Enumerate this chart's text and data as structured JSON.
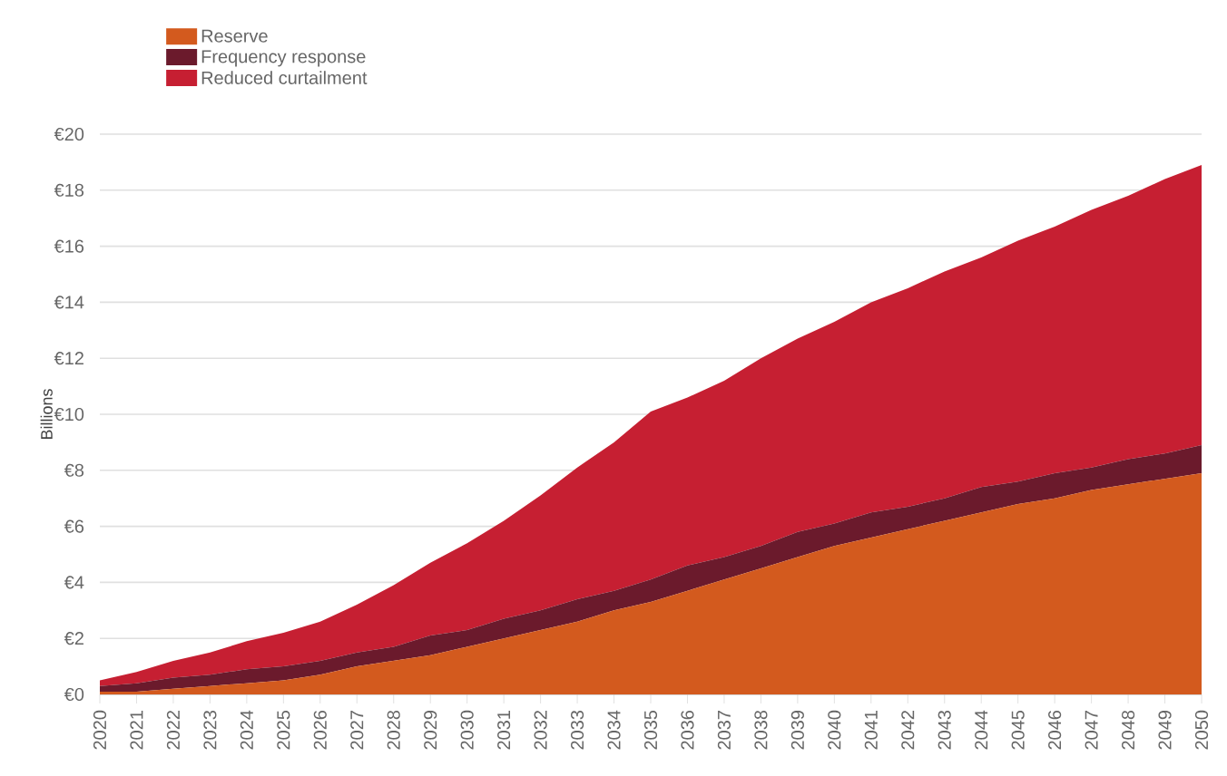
{
  "chart_data": {
    "type": "area",
    "stacked": true,
    "ylabel": "Billions",
    "categories": [
      "2020",
      "2021",
      "2022",
      "2023",
      "2024",
      "2025",
      "2026",
      "2027",
      "2028",
      "2029",
      "2030",
      "2031",
      "2032",
      "2033",
      "2034",
      "2035",
      "2036",
      "2037",
      "2038",
      "2039",
      "2040",
      "2041",
      "2042",
      "2043",
      "2044",
      "2045",
      "2046",
      "2047",
      "2048",
      "2049",
      "2050"
    ],
    "series": [
      {
        "name": "Reserve",
        "color": "#d35a1e",
        "values": [
          0.1,
          0.1,
          0.2,
          0.3,
          0.4,
          0.5,
          0.7,
          1.0,
          1.2,
          1.4,
          1.7,
          2.0,
          2.3,
          2.6,
          3.0,
          3.3,
          3.7,
          4.1,
          4.5,
          4.9,
          5.3,
          5.6,
          5.9,
          6.2,
          6.5,
          6.8,
          7.0,
          7.3,
          7.5,
          7.7,
          7.9
        ]
      },
      {
        "name": "Frequency response",
        "color": "#6b1a2c",
        "values": [
          0.2,
          0.3,
          0.4,
          0.4,
          0.5,
          0.5,
          0.5,
          0.5,
          0.5,
          0.7,
          0.6,
          0.7,
          0.7,
          0.8,
          0.7,
          0.8,
          0.9,
          0.8,
          0.8,
          0.9,
          0.8,
          0.9,
          0.8,
          0.8,
          0.9,
          0.8,
          0.9,
          0.8,
          0.9,
          0.9,
          1.0
        ]
      },
      {
        "name": "Reduced curtailment",
        "color": "#c61f32",
        "values": [
          0.2,
          0.4,
          0.6,
          0.8,
          1.0,
          1.2,
          1.4,
          1.7,
          2.2,
          2.6,
          3.1,
          3.5,
          4.1,
          4.7,
          5.3,
          6.0,
          6.0,
          6.3,
          6.7,
          6.9,
          7.2,
          7.5,
          7.8,
          8.1,
          8.2,
          8.6,
          8.8,
          9.2,
          9.4,
          9.8,
          10.0
        ]
      }
    ],
    "ylim": [
      0,
      20
    ],
    "yticks": [
      {
        "value": 0,
        "label": "€0"
      },
      {
        "value": 2,
        "label": "€2"
      },
      {
        "value": 4,
        "label": "€4"
      },
      {
        "value": 6,
        "label": "€6"
      },
      {
        "value": 8,
        "label": "€8"
      },
      {
        "value": 10,
        "label": "€10"
      },
      {
        "value": 12,
        "label": "€12"
      },
      {
        "value": 14,
        "label": "€14"
      },
      {
        "value": 16,
        "label": "€16"
      },
      {
        "value": 18,
        "label": "€18"
      },
      {
        "value": 20,
        "label": "€20"
      }
    ],
    "grid": "y",
    "legend": "top left"
  }
}
